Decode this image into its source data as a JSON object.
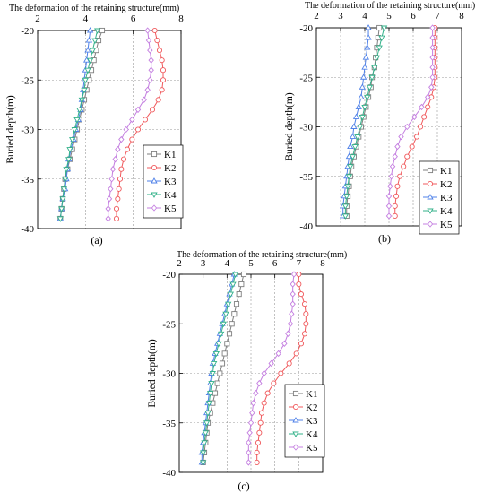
{
  "chart_data": [
    {
      "type": "line",
      "panel_label": "(a)",
      "title": "The deformation of the retaining structure(mm)",
      "xlabel": "The deformation of the retaining structure(mm)",
      "ylabel": "Buried depth(m)",
      "xlim": [
        2,
        8
      ],
      "ylim": [
        -40,
        -20
      ],
      "xticks": [
        "2",
        "4",
        "6",
        "8"
      ],
      "yticks": [
        "-20",
        "-25",
        "-30",
        "-35",
        "-40"
      ],
      "x_axis_position": "top",
      "grid": true,
      "legend_position": "right",
      "y": [
        -20,
        -21,
        -22,
        -23,
        -24,
        -25,
        -26,
        -27,
        -28,
        -29,
        -30,
        -31,
        -32,
        -33,
        -34,
        -35,
        -36,
        -37,
        -38,
        -39
      ],
      "series": [
        {
          "name": "K1",
          "color": "#7f7f7f",
          "marker": "square",
          "values": [
            4.7,
            4.55,
            4.45,
            4.35,
            4.25,
            4.15,
            4.05,
            3.95,
            3.85,
            3.75,
            3.65,
            3.55,
            3.45,
            3.35,
            3.25,
            3.15,
            3.1,
            3.05,
            3.0,
            2.95
          ]
        },
        {
          "name": "K2",
          "color": "#f0595c",
          "marker": "circle",
          "values": [
            6.9,
            7.0,
            7.1,
            7.2,
            7.25,
            7.25,
            7.2,
            7.05,
            6.8,
            6.5,
            6.2,
            5.95,
            5.75,
            5.6,
            5.5,
            5.45,
            5.4,
            5.35,
            5.3,
            5.3
          ]
        },
        {
          "name": "K3",
          "color": "#4f81e8",
          "marker": "triangle",
          "values": [
            4.2,
            4.15,
            4.1,
            4.05,
            4.0,
            3.95,
            3.9,
            3.85,
            3.8,
            3.7,
            3.6,
            3.5,
            3.4,
            3.3,
            3.25,
            3.2,
            3.15,
            3.05,
            3.0,
            2.95
          ]
        },
        {
          "name": "K4",
          "color": "#33b28a",
          "marker": "triangle-down",
          "values": [
            4.5,
            4.4,
            4.3,
            4.2,
            4.1,
            4.0,
            3.95,
            3.85,
            3.75,
            3.65,
            3.55,
            3.45,
            3.35,
            3.3,
            3.2,
            3.15,
            3.1,
            3.05,
            3.0,
            2.95
          ]
        },
        {
          "name": "K5",
          "color": "#c47fe0",
          "marker": "diamond",
          "values": [
            6.6,
            6.65,
            6.7,
            6.75,
            6.75,
            6.7,
            6.6,
            6.45,
            6.2,
            5.95,
            5.7,
            5.5,
            5.35,
            5.25,
            5.15,
            5.1,
            5.05,
            5.0,
            4.95,
            4.95
          ]
        }
      ]
    },
    {
      "type": "line",
      "panel_label": "(b)",
      "title": "The deformation of the retaining structure(mm)",
      "xlabel": "The deformation of the retaining structure(mm)",
      "ylabel": "Buried depth(m)",
      "xlim": [
        2,
        8
      ],
      "ylim": [
        -40,
        -20
      ],
      "xticks": [
        "2",
        "3",
        "4",
        "5",
        "6",
        "7",
        "8"
      ],
      "yticks": [
        "-20",
        "-25",
        "-30",
        "-35",
        "-40"
      ],
      "x_axis_position": "top",
      "grid": true,
      "legend_position": "right",
      "y": [
        -20,
        -21,
        -22,
        -23,
        -24,
        -25,
        -26,
        -27,
        -28,
        -29,
        -30,
        -31,
        -32,
        -33,
        -34,
        -35,
        -36,
        -37,
        -38,
        -39
      ],
      "series": [
        {
          "name": "K1",
          "color": "#7f7f7f",
          "marker": "square",
          "values": [
            4.6,
            4.55,
            4.5,
            4.45,
            4.4,
            4.3,
            4.25,
            4.15,
            4.05,
            3.95,
            3.85,
            3.75,
            3.65,
            3.55,
            3.45,
            3.4,
            3.35,
            3.3,
            3.25,
            3.25
          ]
        },
        {
          "name": "K2",
          "color": "#f0595c",
          "marker": "circle",
          "values": [
            6.9,
            6.9,
            6.9,
            6.9,
            6.9,
            6.9,
            6.85,
            6.75,
            6.6,
            6.45,
            6.3,
            6.15,
            5.95,
            5.75,
            5.6,
            5.45,
            5.35,
            5.3,
            5.25,
            5.25
          ]
        },
        {
          "name": "K3",
          "color": "#4f81e8",
          "marker": "triangle",
          "values": [
            4.15,
            4.15,
            4.1,
            4.05,
            4.0,
            3.95,
            3.9,
            3.85,
            3.75,
            3.65,
            3.55,
            3.5,
            3.4,
            3.35,
            3.3,
            3.25,
            3.2,
            3.15,
            3.1,
            3.1
          ]
        },
        {
          "name": "K4",
          "color": "#33b28a",
          "marker": "triangle-down",
          "values": [
            4.8,
            4.7,
            4.6,
            4.5,
            4.4,
            4.3,
            4.2,
            4.1,
            4.0,
            3.9,
            3.8,
            3.7,
            3.6,
            3.5,
            3.4,
            3.35,
            3.3,
            3.25,
            3.2,
            3.2
          ]
        },
        {
          "name": "K5",
          "color": "#c47fe0",
          "marker": "diamond",
          "values": [
            6.8,
            6.8,
            6.8,
            6.8,
            6.8,
            6.8,
            6.75,
            6.6,
            6.35,
            6.05,
            5.75,
            5.5,
            5.35,
            5.25,
            5.15,
            5.1,
            5.05,
            5.0,
            5.0,
            5.0
          ]
        }
      ]
    },
    {
      "type": "line",
      "panel_label": "(c)",
      "title": "The deformation of the retaining structure(mm)",
      "xlabel": "The deformation of the retaining structure(mm)",
      "ylabel": "Buried depth(m)",
      "xlim": [
        2,
        8
      ],
      "ylim": [
        -40,
        -20
      ],
      "xticks": [
        "2",
        "3",
        "4",
        "5",
        "6",
        "7",
        "8"
      ],
      "yticks": [
        "-20",
        "-25",
        "-30",
        "-35",
        "-40"
      ],
      "x_axis_position": "top",
      "grid": true,
      "legend_position": "right",
      "y": [
        -20,
        -21,
        -22,
        -23,
        -24,
        -25,
        -26,
        -27,
        -28,
        -29,
        -30,
        -31,
        -32,
        -33,
        -34,
        -35,
        -36,
        -37,
        -38,
        -39
      ],
      "series": [
        {
          "name": "K1",
          "color": "#7f7f7f",
          "marker": "square",
          "values": [
            4.7,
            4.6,
            4.5,
            4.4,
            4.3,
            4.2,
            4.1,
            4.0,
            3.9,
            3.8,
            3.7,
            3.6,
            3.5,
            3.4,
            3.3,
            3.2,
            3.15,
            3.1,
            3.05,
            3.0
          ]
        },
        {
          "name": "K2",
          "color": "#f0595c",
          "marker": "circle",
          "values": [
            7.0,
            7.0,
            7.1,
            7.25,
            7.3,
            7.3,
            7.25,
            7.1,
            6.9,
            6.6,
            6.25,
            5.95,
            5.7,
            5.55,
            5.45,
            5.4,
            5.35,
            5.3,
            5.25,
            5.25
          ]
        },
        {
          "name": "K3",
          "color": "#4f81e8",
          "marker": "triangle",
          "values": [
            4.3,
            4.2,
            4.1,
            4.0,
            3.9,
            3.8,
            3.7,
            3.6,
            3.5,
            3.4,
            3.35,
            3.3,
            3.25,
            3.2,
            3.15,
            3.1,
            3.05,
            3.0,
            2.95,
            2.95
          ]
        },
        {
          "name": "K4",
          "color": "#33b28a",
          "marker": "triangle-down",
          "values": [
            4.35,
            4.25,
            4.15,
            4.05,
            3.95,
            3.85,
            3.75,
            3.65,
            3.55,
            3.45,
            3.4,
            3.35,
            3.3,
            3.25,
            3.2,
            3.15,
            3.1,
            3.05,
            3.0,
            3.0
          ]
        },
        {
          "name": "K5",
          "color": "#c47fe0",
          "marker": "diamond",
          "values": [
            6.8,
            6.75,
            6.75,
            6.75,
            6.7,
            6.65,
            6.55,
            6.4,
            6.15,
            5.85,
            5.55,
            5.35,
            5.2,
            5.1,
            5.05,
            5.0,
            4.95,
            4.9,
            4.9,
            4.9
          ]
        }
      ]
    }
  ]
}
